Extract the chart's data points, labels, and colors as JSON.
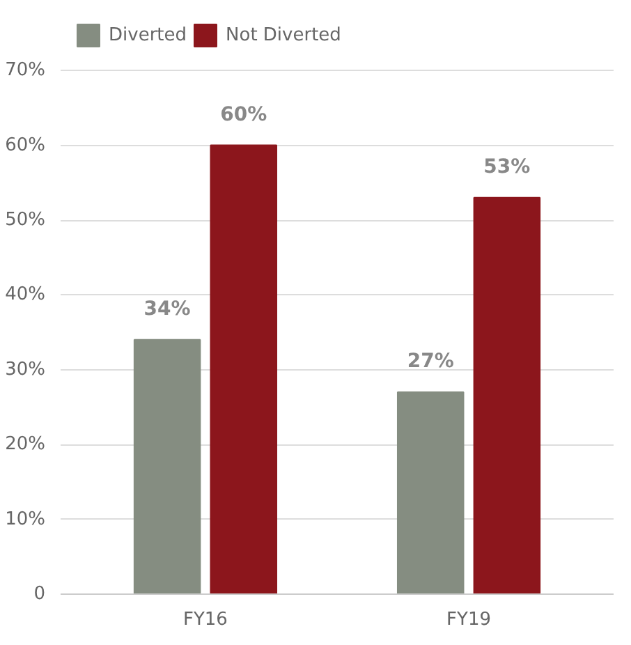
{
  "chart_data": {
    "type": "bar",
    "categories": [
      "FY16",
      "FY19"
    ],
    "series": [
      {
        "name": "Diverted",
        "color": "#858d81",
        "values": [
          34,
          27
        ],
        "value_labels": [
          "34%",
          "27%"
        ]
      },
      {
        "name": "Not Diverted",
        "color": "#8c161c",
        "values": [
          60,
          53
        ],
        "value_labels": [
          "60%",
          "53%"
        ]
      }
    ],
    "ylim": [
      0,
      70
    ],
    "yticks": [
      0,
      {
        "value": 10,
        "label": "10%"
      },
      {
        "value": 20,
        "label": "20%"
      },
      {
        "value": 30,
        "label": "30%"
      },
      {
        "value": 40,
        "label": "40%"
      },
      {
        "value": 50,
        "label": "50%"
      },
      {
        "value": 60,
        "label": "60%"
      },
      {
        "value": 70,
        "label": "70%"
      }
    ],
    "grid": "y",
    "legend": "top left"
  }
}
